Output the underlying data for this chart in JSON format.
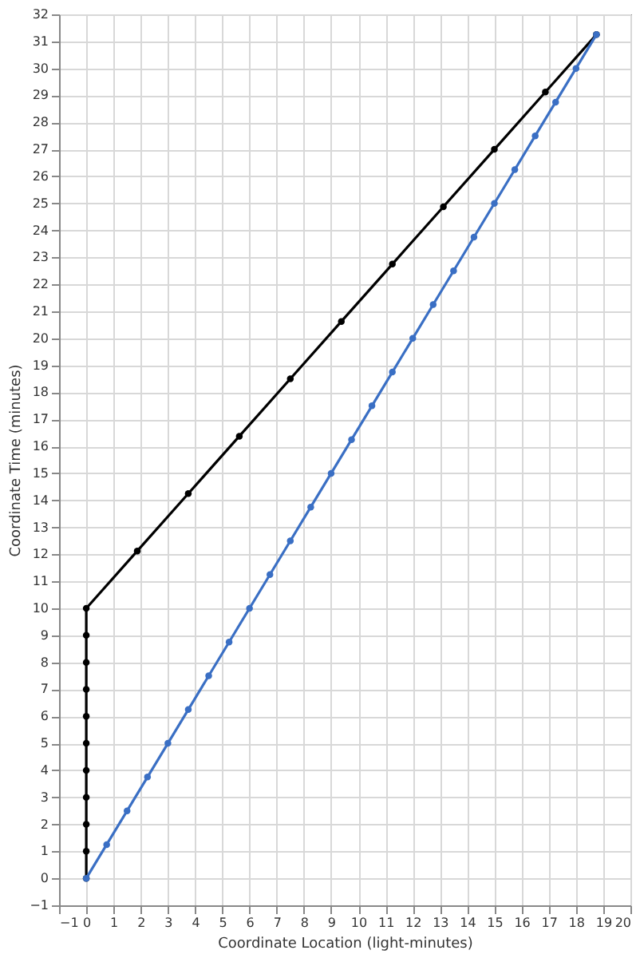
{
  "chart_data": {
    "type": "line",
    "xlabel": "Coordinate Location (light-minutes)",
    "ylabel": "Coordinate Time (minutes)",
    "xlim": [
      -1,
      20
    ],
    "xticks": [
      -1,
      0,
      1,
      2,
      3,
      4,
      5,
      6,
      7,
      8,
      9,
      10,
      11,
      12,
      13,
      14,
      15,
      16,
      17,
      18,
      19,
      20
    ],
    "ylim": [
      -1,
      32
    ],
    "yticks": [
      -1,
      0,
      1,
      2,
      3,
      4,
      5,
      6,
      7,
      8,
      9,
      10,
      11,
      12,
      13,
      14,
      15,
      16,
      17,
      18,
      19,
      20,
      21,
      22,
      23,
      24,
      25,
      26,
      27,
      28,
      29,
      30,
      31,
      32
    ],
    "grid": true,
    "marker": "circle",
    "line_style": "solid",
    "series": [
      {
        "color": "#000000",
        "x": [
          0,
          0,
          0,
          0,
          0,
          0,
          0,
          0,
          0,
          0,
          0,
          1.875,
          3.75,
          5.625,
          7.5,
          9.375,
          11.25,
          13.125,
          15,
          16.875,
          18.75
        ],
        "values": [
          0,
          1,
          2,
          3,
          4,
          5,
          6,
          7,
          8,
          9,
          10,
          12.125,
          14.25,
          16.375,
          18.5,
          20.625,
          22.75,
          24.875,
          27,
          29.125,
          31.25
        ]
      },
      {
        "color": "#3a6fc4",
        "x": [
          0,
          0.75,
          1.5,
          2.25,
          3,
          3.75,
          4.5,
          5.25,
          6,
          6.75,
          7.5,
          8.25,
          9,
          9.75,
          10.5,
          11.25,
          12,
          12.75,
          13.5,
          14.25,
          15,
          15.75,
          16.5,
          17.25,
          18,
          18.75
        ],
        "values": [
          0,
          1.25,
          2.5,
          3.75,
          5,
          6.25,
          7.5,
          8.75,
          10,
          11.25,
          12.5,
          13.75,
          15,
          16.25,
          17.5,
          18.75,
          20,
          21.25,
          22.5,
          23.75,
          25,
          26.25,
          27.5,
          28.75,
          30,
          31.25
        ]
      }
    ]
  }
}
